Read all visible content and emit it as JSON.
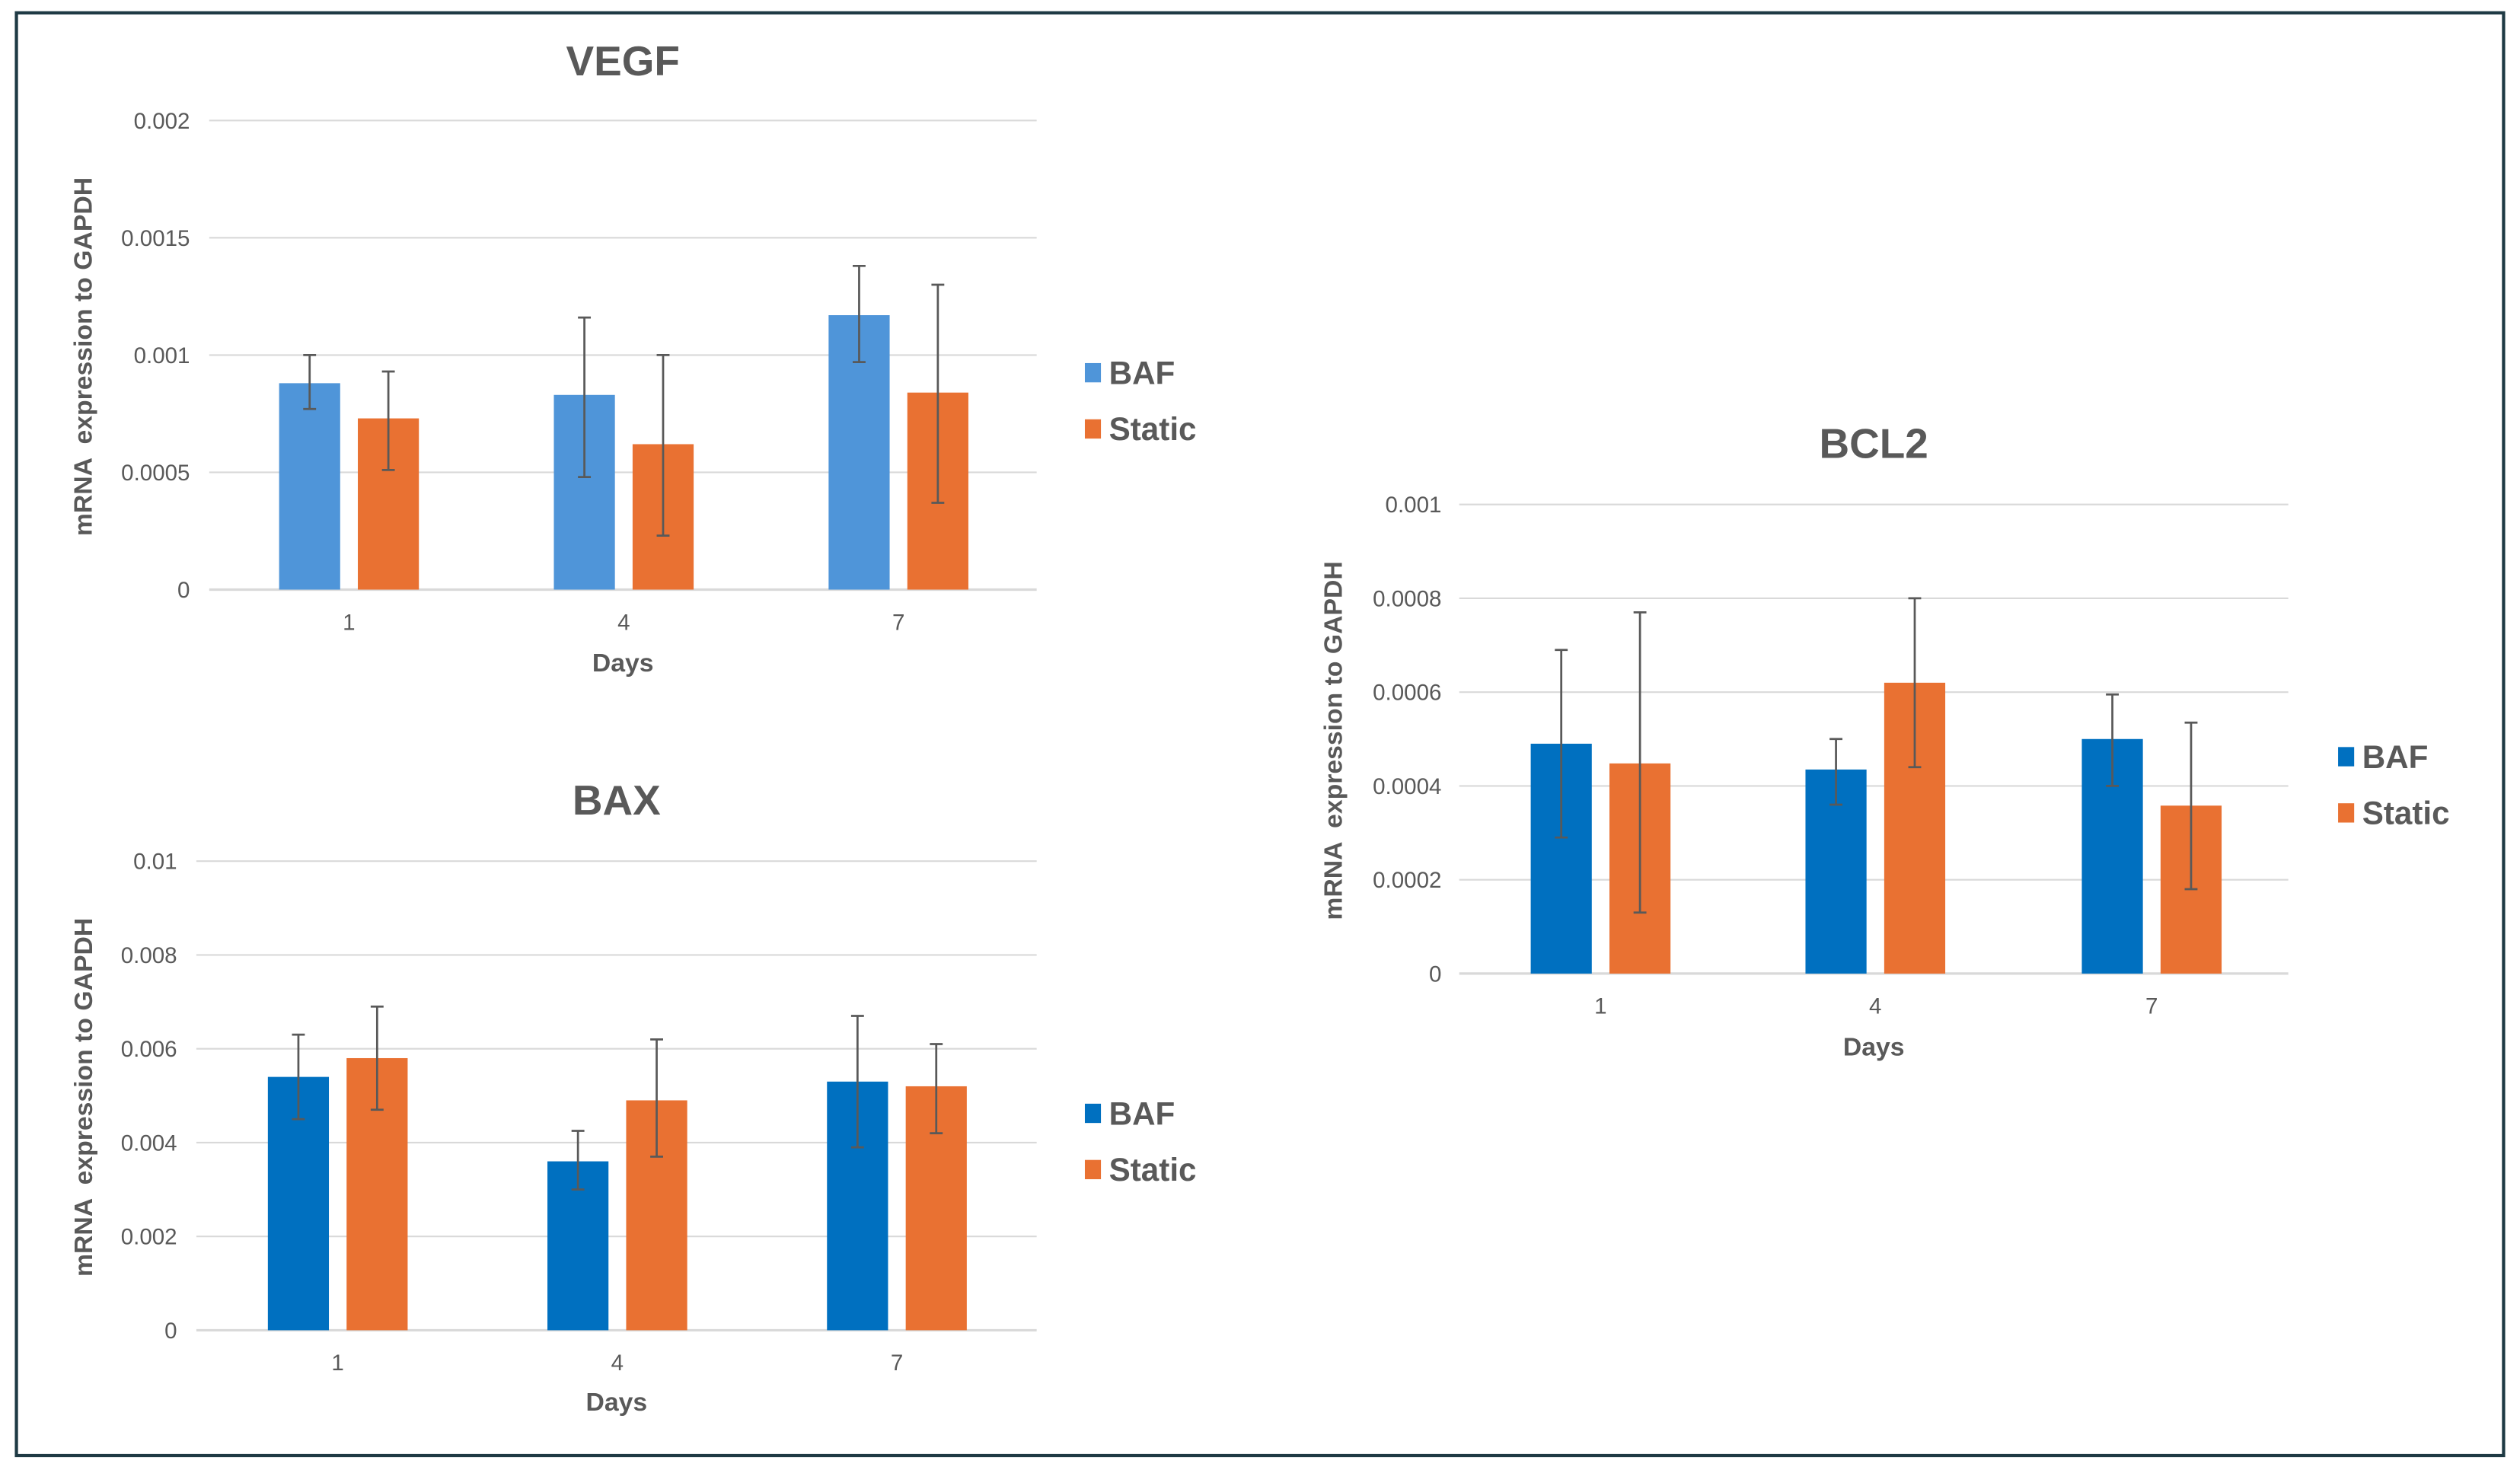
{
  "chart_data": [
    {
      "type": "bar",
      "title": "VEGF",
      "xlabel": "Days",
      "ylabel": "mRNA  expression to GAPDH",
      "categories": [
        "1",
        "4",
        "7"
      ],
      "ylim": [
        0,
        0.002
      ],
      "yticks": [
        "0",
        "0.0005",
        "0.001",
        "0.0015",
        "0.002"
      ],
      "ytick_values": [
        0,
        0.0005,
        0.001,
        0.0015,
        0.002
      ],
      "grid": true,
      "legend_position": "right",
      "series": [
        {
          "name": "BAF",
          "color": "#4f95d9",
          "values": [
            0.00088,
            0.00083,
            0.00117
          ],
          "err_high": [
            0.001,
            0.00116,
            0.00138
          ],
          "err_low": [
            0.00077,
            0.00048,
            0.00097
          ]
        },
        {
          "name": "Static",
          "color": "#e97132",
          "values": [
            0.00073,
            0.00062,
            0.00084
          ],
          "err_high": [
            0.00093,
            0.001,
            0.0013
          ],
          "err_low": [
            0.00051,
            0.00023,
            0.00037
          ]
        }
      ]
    },
    {
      "type": "bar",
      "title": "BAX",
      "xlabel": "Days",
      "ylabel": "mRNA  expression to GAPDH",
      "categories": [
        "1",
        "4",
        "7"
      ],
      "ylim": [
        0,
        0.01
      ],
      "yticks": [
        "0",
        "0.002",
        "0.004",
        "0.006",
        "0.008",
        "0.01"
      ],
      "ytick_values": [
        0,
        0.002,
        0.004,
        0.006,
        0.008,
        0.01
      ],
      "grid": true,
      "legend_position": "right",
      "series": [
        {
          "name": "BAF",
          "color": "#0070c0",
          "values": [
            0.0054,
            0.0036,
            0.0053
          ],
          "err_high": [
            0.0063,
            0.00425,
            0.0067
          ],
          "err_low": [
            0.0045,
            0.003,
            0.0039
          ]
        },
        {
          "name": "Static",
          "color": "#e97132",
          "values": [
            0.0058,
            0.0049,
            0.0052
          ],
          "err_high": [
            0.0069,
            0.0062,
            0.0061
          ],
          "err_low": [
            0.0047,
            0.0037,
            0.0042
          ]
        }
      ]
    },
    {
      "type": "bar",
      "title": "BCL2",
      "xlabel": "Days",
      "ylabel": "mRNA  expression to GAPDH",
      "categories": [
        "1",
        "4",
        "7"
      ],
      "ylim": [
        0,
        0.001
      ],
      "yticks": [
        "0",
        "0.0002",
        "0.0004",
        "0.0006",
        "0.0008",
        "0.001"
      ],
      "ytick_values": [
        0,
        0.0002,
        0.0004,
        0.0006,
        0.0008,
        0.001
      ],
      "grid": true,
      "legend_position": "right",
      "series": [
        {
          "name": "BAF",
          "color": "#0070c0",
          "values": [
            0.00049,
            0.000435,
            0.0005
          ],
          "err_high": [
            0.00069,
            0.0005,
            0.000595
          ],
          "err_low": [
            0.00029,
            0.00036,
            0.0004
          ]
        },
        {
          "name": "Static",
          "color": "#e97132",
          "values": [
            0.000448,
            0.00062,
            0.000358
          ],
          "err_high": [
            0.00077,
            0.0008,
            0.000535
          ],
          "err_low": [
            0.00013,
            0.00044,
            0.00018
          ]
        }
      ]
    }
  ]
}
